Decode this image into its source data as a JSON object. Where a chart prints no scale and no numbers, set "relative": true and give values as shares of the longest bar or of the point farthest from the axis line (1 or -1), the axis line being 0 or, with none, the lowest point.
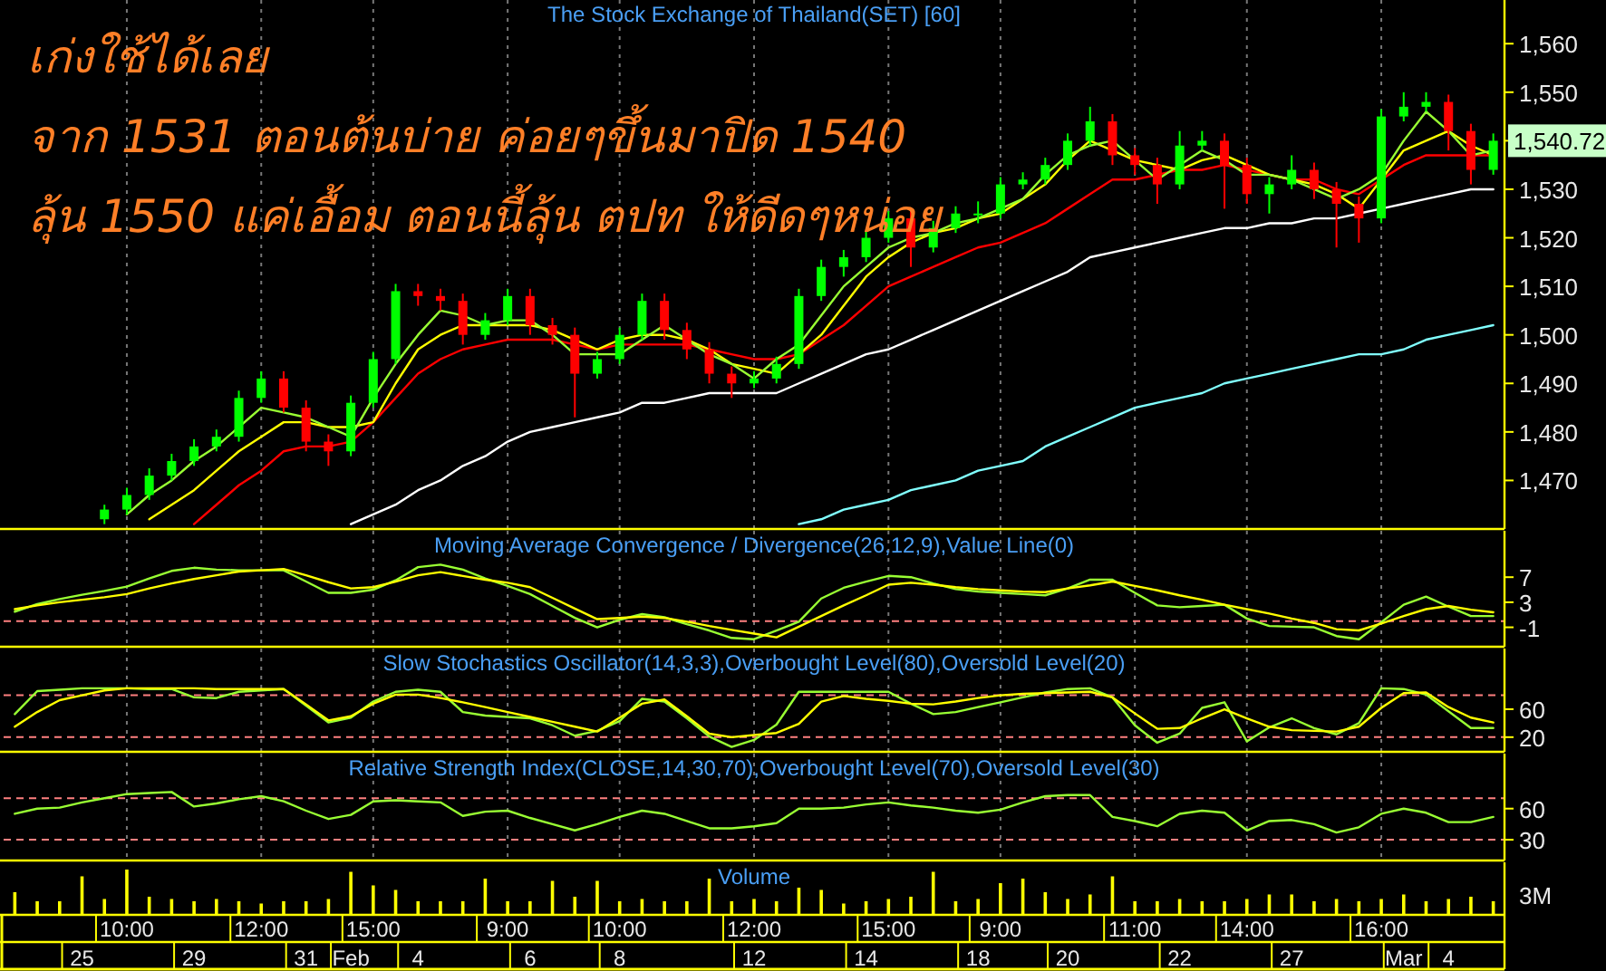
{
  "chart_data": [
    {
      "type": "candlestick",
      "title": "The Stock Exchange of Thailand(SET) [60]",
      "annotations": [
        "เก่งใช้ได้เลย",
        "จาก 1531 ตอนต้นบ่าย ค่อยๆขึ้นมาปิด 1540",
        "ลุ้น 1550 แค่เอื้อม ตอนนี้ลุ้น ตปท ให้ดีดๆหน่อย",
        "1,540.72"
      ],
      "categories": [
        null,
        null,
        null,
        null,
        null,
        null,
        null,
        null,
        null,
        null,
        null,
        null,
        null,
        null,
        null,
        null,
        null,
        null,
        null,
        null,
        null,
        null,
        null,
        null,
        null,
        null,
        null,
        null,
        null,
        null,
        null,
        null,
        null,
        null,
        null,
        null,
        null,
        null,
        null,
        null,
        null,
        null,
        null,
        null,
        null,
        null,
        null,
        null,
        null,
        null,
        null,
        null,
        null,
        null,
        null,
        null,
        null,
        null,
        null,
        null,
        null,
        null,
        null,
        null,
        null,
        null,
        null
      ],
      "ohlc": [
        null,
        null,
        null,
        null,
        [
          1462,
          1465,
          1461,
          1464
        ],
        [
          1464,
          1468.5,
          1463,
          1467
        ],
        [
          1467,
          1472.5,
          1466,
          1471
        ],
        [
          1471,
          1475.5,
          1470,
          1474
        ],
        [
          1474,
          1478.5,
          1473,
          1477
        ],
        [
          1477,
          1480.5,
          1476,
          1479
        ],
        [
          1479,
          1488.5,
          1478,
          1487
        ],
        [
          1487,
          1492.5,
          1486,
          1491
        ],
        [
          1491,
          1492.5,
          1484,
          1485
        ],
        [
          1485,
          1486.5,
          1476,
          1478
        ],
        [
          1478,
          1479.5,
          1473,
          1476
        ],
        [
          1476,
          1487.5,
          1475,
          1486
        ],
        [
          1486,
          1496.5,
          1485,
          1495
        ],
        [
          1495,
          1510.5,
          1494,
          1509
        ],
        [
          1509,
          1510.5,
          1506,
          1508
        ],
        [
          1508,
          1509.5,
          1505,
          1507
        ],
        [
          1507,
          1508.5,
          1498,
          1500
        ],
        [
          1500,
          1504.5,
          1499,
          1503
        ],
        [
          1503,
          1509.5,
          1502,
          1508
        ],
        [
          1508,
          1509.5,
          1500,
          1502
        ],
        [
          1502,
          1503.5,
          1498,
          1500
        ],
        [
          1500,
          1501.5,
          1483,
          1492
        ],
        [
          1492,
          1496.5,
          1491,
          1495
        ],
        [
          1495,
          1501.5,
          1494,
          1500
        ],
        [
          1500,
          1508.5,
          1499,
          1507
        ],
        [
          1507,
          1508.5,
          1499,
          1501
        ],
        [
          1501,
          1502.5,
          1495,
          1497
        ],
        [
          1497,
          1498.5,
          1490,
          1492
        ],
        [
          1492,
          1493.5,
          1487,
          1490
        ],
        [
          1490,
          1492.5,
          1489,
          1491
        ],
        [
          1491,
          1495.5,
          1490,
          1494
        ],
        [
          1494,
          1509.5,
          1493,
          1508
        ],
        [
          1508,
          1515.5,
          1507,
          1514
        ],
        [
          1514,
          1517.5,
          1512,
          1516
        ],
        [
          1516,
          1521.5,
          1515,
          1520
        ],
        [
          1520,
          1525.5,
          1519,
          1524
        ],
        [
          1524,
          1525.5,
          1514,
          1518
        ],
        [
          1518,
          1523.5,
          1517,
          1522
        ],
        [
          1522,
          1526.5,
          1521,
          1525
        ],
        [
          1525,
          1527.5,
          1523,
          1525
        ],
        [
          1525,
          1532.5,
          1524,
          1531
        ],
        [
          1531,
          1533.5,
          1530,
          1532
        ],
        [
          1532,
          1536.5,
          1531,
          1535
        ],
        [
          1535,
          1541.5,
          1534,
          1540
        ],
        [
          1540,
          1547,
          1539,
          1544
        ],
        [
          1544,
          1545.5,
          1535,
          1537
        ],
        [
          1537,
          1538.5,
          1533,
          1535
        ],
        [
          1535,
          1536.5,
          1527,
          1531
        ],
        [
          1531,
          1542,
          1530,
          1539
        ],
        [
          1539,
          1542,
          1538,
          1540
        ],
        [
          1540,
          1541.5,
          1526,
          1535
        ],
        [
          1535,
          1536.5,
          1527,
          1529
        ],
        [
          1529,
          1532.5,
          1525,
          1531
        ],
        [
          1531,
          1537,
          1530,
          1534
        ],
        [
          1534,
          1535.5,
          1528,
          1530
        ],
        [
          1530,
          1531.5,
          1518,
          1527
        ],
        [
          1527,
          1528.5,
          1519,
          1524
        ],
        [
          1524,
          1546.5,
          1523,
          1545
        ],
        [
          1545,
          1550,
          1544,
          1547
        ],
        [
          1547,
          1550,
          1546,
          1548
        ],
        [
          1548,
          1549.5,
          1538,
          1542
        ],
        [
          1542,
          1543.5,
          1531,
          1534
        ],
        [
          1534,
          1541.5,
          1533,
          1540
        ]
      ],
      "series": [
        {
          "type": "line",
          "color": "#ffffff",
          "values": [
            null,
            null,
            null,
            null,
            null,
            null,
            null,
            null,
            null,
            null,
            null,
            null,
            null,
            null,
            null,
            1461,
            1463,
            1465,
            1468,
            1470,
            1473,
            1475,
            1478,
            1480,
            1481,
            1482,
            1483,
            1484,
            1486,
            1486,
            1487,
            1488,
            1488,
            1488,
            1488,
            1490,
            1492,
            1494,
            1496,
            1497,
            1499,
            1501,
            1503,
            1505,
            1507,
            1509,
            1511,
            1513,
            1516,
            1517,
            1518,
            1519,
            1520,
            1521,
            1522,
            1522,
            1523,
            1523,
            1524,
            1524,
            1525,
            1526,
            1527,
            1528,
            1529,
            1530,
            1530
          ]
        },
        {
          "type": "line",
          "color": "#80ffff",
          "values": [
            null,
            null,
            null,
            null,
            null,
            null,
            null,
            null,
            null,
            null,
            null,
            null,
            null,
            null,
            null,
            null,
            null,
            null,
            null,
            null,
            null,
            null,
            null,
            null,
            null,
            null,
            null,
            null,
            null,
            null,
            null,
            null,
            null,
            null,
            null,
            1461,
            1462,
            1464,
            1465,
            1466,
            1468,
            1469,
            1470,
            1472,
            1473,
            1474,
            1477,
            1479,
            1481,
            1483,
            1485,
            1486,
            1487,
            1488,
            1490,
            1491,
            1492,
            1493,
            1494,
            1495,
            1496,
            1496,
            1497,
            1499,
            1500,
            1501,
            1502
          ]
        },
        {
          "type": "line",
          "color": "#ff0000",
          "values": [
            null,
            null,
            null,
            null,
            null,
            null,
            null,
            null,
            1461,
            1465,
            1469,
            1472,
            1476,
            1477,
            1477,
            1478,
            1482,
            1487,
            1492,
            1495,
            1497,
            1498,
            1499,
            1499,
            1499,
            1498,
            1497,
            1498,
            1498,
            1498,
            1498,
            1497,
            1496,
            1495,
            1495,
            1496,
            1499,
            1502,
            1506,
            1510,
            1512,
            1514,
            1516,
            1518,
            1519,
            1521,
            1523,
            1526,
            1529,
            1532,
            1532,
            1533,
            1534,
            1534,
            1535,
            1534,
            1533,
            1532,
            1532,
            1530,
            1529,
            1532,
            1535,
            1537,
            1537,
            1537,
            1537
          ]
        },
        {
          "type": "line",
          "color": "#ffff00",
          "values": [
            null,
            null,
            null,
            null,
            null,
            null,
            1462,
            1465,
            1468,
            1472,
            1476,
            1479,
            1482,
            1482,
            1481,
            1481,
            1482,
            1490,
            1497,
            1500,
            1502,
            1502,
            1502,
            1502,
            1501,
            1499,
            1497,
            1499,
            1500,
            1500,
            1499,
            1497,
            1494,
            1493,
            1492,
            1496,
            1500,
            1506,
            1512,
            1516,
            1519,
            1521,
            1522,
            1524,
            1525,
            1528,
            1531,
            1536,
            1540,
            1538,
            1536,
            1535,
            1534,
            1536,
            1537,
            1535,
            1533,
            1532,
            1531,
            1529,
            1526,
            1532,
            1538,
            1540,
            1542,
            1539,
            1537
          ]
        },
        {
          "type": "line",
          "color": "#99ff33",
          "values": [
            null,
            null,
            null,
            null,
            null,
            1463,
            1467,
            1470,
            1474,
            1477,
            1481,
            1485,
            1484,
            1483,
            1481,
            1479,
            1487,
            1494,
            1500,
            1505,
            1504,
            1502,
            1503,
            1503,
            1500,
            1496,
            1496,
            1496,
            1499,
            1502,
            1499,
            1496,
            1494,
            1491,
            1495,
            1498,
            1504,
            1510,
            1514,
            1518,
            1520,
            1521,
            1523,
            1524,
            1526,
            1528,
            1533,
            1537,
            1539,
            1540,
            1536,
            1532,
            1535,
            1538,
            1536,
            1533,
            1533,
            1532,
            1530,
            1528,
            1530,
            1533,
            1540,
            1546,
            1542,
            1537,
            1538
          ]
        }
      ],
      "grid": "x",
      "tick_labels": "y",
      "ylim": [
        1460,
        1569
      ],
      "yticks": [
        {
          "value": 1470,
          "label": "1,470"
        },
        {
          "value": 1480,
          "label": "1,480"
        },
        {
          "value": 1490,
          "label": "1,490"
        },
        {
          "value": 1500,
          "label": "1,500"
        },
        {
          "value": 1510,
          "label": "1,510"
        },
        {
          "value": 1520,
          "label": "1,520"
        },
        {
          "value": 1530,
          "label": "1,530"
        },
        {
          "value": 1540,
          "label": null
        },
        {
          "value": 1550,
          "label": "1,550"
        },
        {
          "value": 1560,
          "label": "1,560"
        }
      ]
    },
    {
      "type": "line",
      "title": "Moving Average Convergence / Divergence(26,12,9),Value Line(0)",
      "categories": [
        null,
        null,
        null,
        null,
        null,
        null,
        null,
        null,
        null,
        null,
        null,
        null,
        null,
        null,
        null,
        null,
        null,
        null,
        null,
        null,
        null,
        null,
        null,
        null,
        null,
        null,
        null,
        null,
        null,
        null,
        null,
        null,
        null,
        null,
        null,
        null,
        null,
        null,
        null,
        null,
        null,
        null,
        null,
        null,
        null,
        null,
        null,
        null,
        null,
        null,
        null,
        null,
        null,
        null,
        null,
        null,
        null,
        null,
        null,
        null,
        null,
        null,
        null,
        null,
        null,
        null,
        null
      ],
      "series": [
        {
          "color": "#99ff33",
          "values": [
            1.5,
            2.7,
            3.5,
            4.2,
            4.8,
            5.5,
            6.8,
            8,
            8.5,
            8.2,
            8.1,
            8.1,
            8.1,
            6.3,
            4.5,
            4.5,
            5,
            6.5,
            8.6,
            9,
            8.2,
            6.8,
            5.6,
            4.3,
            2.4,
            0.5,
            -1,
            0.2,
            1.1,
            0.6,
            -0.5,
            -1.5,
            -2.7,
            -2.9,
            -1.5,
            -0.1,
            3.6,
            5.3,
            6.3,
            7.2,
            7,
            6,
            5.1,
            4.7,
            4.5,
            4.3,
            4.1,
            5.2,
            6.6,
            6.6,
            4.5,
            2.5,
            2.2,
            2.4,
            2.6,
            0.4,
            -0.8,
            -0.9,
            -1,
            -2.4,
            -2.9,
            -0.2,
            2.6,
            3.9,
            2.3,
            0.8,
            0.8
          ]
        },
        {
          "color": "#ffff00",
          "values": [
            1.9,
            2.5,
            3,
            3.4,
            3.8,
            4.3,
            5.2,
            6,
            6.7,
            7.3,
            7.9,
            8.1,
            8.3,
            7.3,
            6.2,
            5.2,
            5.4,
            6.3,
            7.3,
            7.8,
            7.2,
            6.6,
            6.1,
            5.4,
            3.7,
            2,
            0.3,
            0.5,
            0.7,
            0.5,
            -0.1,
            -0.8,
            -1.4,
            -2,
            -2.6,
            -0.9,
            0.8,
            2.5,
            4.1,
            5.8,
            6.1,
            5.8,
            5.4,
            5.1,
            4.9,
            4.7,
            4.6,
            5.2,
            5.7,
            6.3,
            5.6,
            4.9,
            4.1,
            3.4,
            2.6,
            1.9,
            1.2,
            0.4,
            -0.3,
            -1.3,
            -1.5,
            -0.4,
            0.8,
            1.9,
            2.4,
            1.8,
            1.4
          ]
        }
      ],
      "ref_lines": [
        {
          "axis": "y",
          "value": 0,
          "color": "#ff8080",
          "line_style": "dashed"
        }
      ],
      "grid": "x",
      "tick_labels": "y",
      "ylim": [
        -4.1,
        14.4
      ],
      "yticks": [
        7,
        3,
        -1
      ]
    },
    {
      "type": "line",
      "title": "Slow Stochastics Oscillator(14,3,3),Overbought Level(80),Oversold Level(20)",
      "categories": [
        null,
        null,
        null,
        null,
        null,
        null,
        null,
        null,
        null,
        null,
        null,
        null,
        null,
        null,
        null,
        null,
        null,
        null,
        null,
        null,
        null,
        null,
        null,
        null,
        null,
        null,
        null,
        null,
        null,
        null,
        null,
        null,
        null,
        null,
        null,
        null,
        null,
        null,
        null,
        null,
        null,
        null,
        null,
        null,
        null,
        null,
        null,
        null,
        null,
        null,
        null,
        null,
        null,
        null,
        null,
        null,
        null,
        null,
        null,
        null,
        null,
        null,
        null,
        null,
        null,
        null,
        null
      ],
      "series": [
        {
          "color": "#99ff33",
          "values": [
            53,
            86,
            88,
            90,
            90,
            90,
            89,
            89,
            77,
            76,
            85,
            87,
            89,
            65,
            41,
            48,
            71,
            85,
            88,
            85,
            56,
            51,
            49,
            47,
            37,
            22,
            29,
            43,
            75,
            71,
            47,
            21,
            6,
            16,
            38,
            85,
            85,
            85,
            85,
            85,
            68,
            53,
            56,
            63,
            70,
            77,
            84,
            89,
            90,
            77,
            37,
            12,
            25,
            62,
            70,
            14,
            34,
            47,
            33,
            24,
            40,
            90,
            89,
            81,
            57,
            33,
            33
          ]
        },
        {
          "color": "#ffff00",
          "values": [
            35,
            56,
            73,
            80,
            87,
            90,
            90,
            90,
            90,
            89,
            89,
            89,
            89,
            67,
            44,
            50,
            68,
            81,
            81,
            76,
            70,
            63,
            56,
            49,
            42,
            35,
            28,
            48,
            68,
            74,
            50,
            25,
            20,
            23,
            26,
            39,
            71,
            79,
            75,
            72,
            68,
            67,
            71,
            76,
            80,
            82,
            83,
            84,
            85,
            77,
            54,
            32,
            33,
            47,
            60,
            47,
            35,
            30,
            29,
            28,
            35,
            62,
            83,
            84,
            63,
            48,
            41
          ]
        }
      ],
      "ref_lines": [
        {
          "axis": "y",
          "value": 80,
          "color": "#ff8080",
          "line_style": "dashed"
        },
        {
          "axis": "y",
          "value": 20,
          "color": "#ff8080",
          "line_style": "dashed"
        }
      ],
      "grid": "x",
      "tick_labels": "y",
      "ylim": [
        -1,
        147
      ],
      "yticks": [
        60,
        20
      ]
    },
    {
      "type": "line",
      "title": "Relative Strength Index(CLOSE,14,30,70),Overbought Level(70),Oversold Level(30)",
      "categories": [
        null,
        null,
        null,
        null,
        null,
        null,
        null,
        null,
        null,
        null,
        null,
        null,
        null,
        null,
        null,
        null,
        null,
        null,
        null,
        null,
        null,
        null,
        null,
        null,
        null,
        null,
        null,
        null,
        null,
        null,
        null,
        null,
        null,
        null,
        null,
        null,
        null,
        null,
        null,
        null,
        null,
        null,
        null,
        null,
        null,
        null,
        null,
        null,
        null,
        null,
        null,
        null,
        null,
        null,
        null,
        null,
        null,
        null,
        null,
        null,
        null,
        null,
        null,
        null,
        null,
        null,
        null
      ],
      "series": [
        {
          "color": "#99ff33",
          "values": [
            55,
            60,
            61,
            66,
            70,
            74,
            75,
            76,
            62,
            65,
            69,
            72,
            67,
            58,
            50,
            54,
            67,
            68,
            67,
            66,
            53,
            57,
            58,
            51,
            45,
            39,
            45,
            52,
            58,
            55,
            48,
            41,
            41,
            43,
            46,
            60,
            60,
            61,
            64,
            66,
            63,
            61,
            58,
            56,
            59,
            66,
            72,
            73,
            73,
            52,
            48,
            43,
            55,
            58,
            56,
            39,
            48,
            49,
            45,
            37,
            42,
            55,
            60,
            56,
            47,
            47,
            52
          ]
        }
      ],
      "ref_lines": [
        {
          "axis": "y",
          "value": 70,
          "color": "#ff8080",
          "line_style": "dashed"
        },
        {
          "axis": "y",
          "value": 30,
          "color": "#ff8080",
          "line_style": "dashed"
        }
      ],
      "grid": "x",
      "tick_labels": "y",
      "ylim": [
        10,
        113
      ],
      "yticks": [
        60,
        30
      ]
    },
    {
      "type": "bar",
      "title": "Volume",
      "relative": true,
      "color": "#ffff00",
      "annotations": [
        "3M"
      ],
      "categories": [
        null,
        null,
        null,
        null,
        null,
        "10:00",
        null,
        null,
        null,
        null,
        null,
        "12:00",
        null,
        null,
        null,
        null,
        "15:00",
        null,
        null,
        null,
        null,
        null,
        "9:00",
        null,
        null,
        null,
        null,
        "10:00",
        null,
        null,
        null,
        null,
        null,
        "12:00",
        null,
        null,
        null,
        null,
        null,
        "15:00",
        null,
        null,
        null,
        null,
        "9:00",
        null,
        null,
        null,
        null,
        null,
        "11:00",
        null,
        null,
        null,
        null,
        "14:00",
        null,
        null,
        null,
        null,
        null,
        "16:00",
        null,
        null,
        null,
        null,
        null
      ],
      "values": [
        0.5,
        0.3,
        0.3,
        0.85,
        0.35,
        1,
        0.4,
        0.35,
        0.3,
        0.35,
        0.3,
        0.25,
        0.3,
        0.3,
        0.35,
        0.95,
        0.65,
        0.55,
        0.3,
        0.3,
        0.3,
        0.8,
        0.3,
        0.3,
        0.75,
        0.4,
        0.75,
        0.3,
        0.35,
        0.3,
        0.3,
        0.8,
        0.3,
        0.35,
        0.3,
        0.6,
        0.55,
        0.25,
        0.3,
        0.35,
        0.4,
        0.95,
        0.3,
        0.35,
        0.7,
        0.8,
        0.5,
        0.35,
        0.45,
        0.85,
        0.3,
        0.3,
        0.35,
        0.3,
        0.3,
        0.35,
        0.45,
        0.45,
        0.3,
        0.35,
        0.3,
        0.35,
        0.45,
        0.3,
        0.35,
        0.4,
        0.3
      ]
    },
    {
      "type": "other",
      "categories": [
        null,
        null,
        null,
        "25",
        null,
        null,
        null,
        null,
        "29",
        null,
        null,
        null,
        null,
        "31",
        null,
        "Feb",
        null,
        null,
        "4",
        null,
        null,
        null,
        null,
        "6",
        null,
        null,
        null,
        "8",
        null,
        null,
        null,
        null,
        null,
        "12",
        null,
        null,
        null,
        null,
        "14",
        null,
        null,
        null,
        null,
        "18",
        null,
        null,
        null,
        "20",
        null,
        null,
        null,
        null,
        "22",
        null,
        null,
        null,
        null,
        "27",
        null,
        null,
        null,
        null,
        "Mar",
        null,
        "4",
        null,
        null
      ]
    }
  ]
}
